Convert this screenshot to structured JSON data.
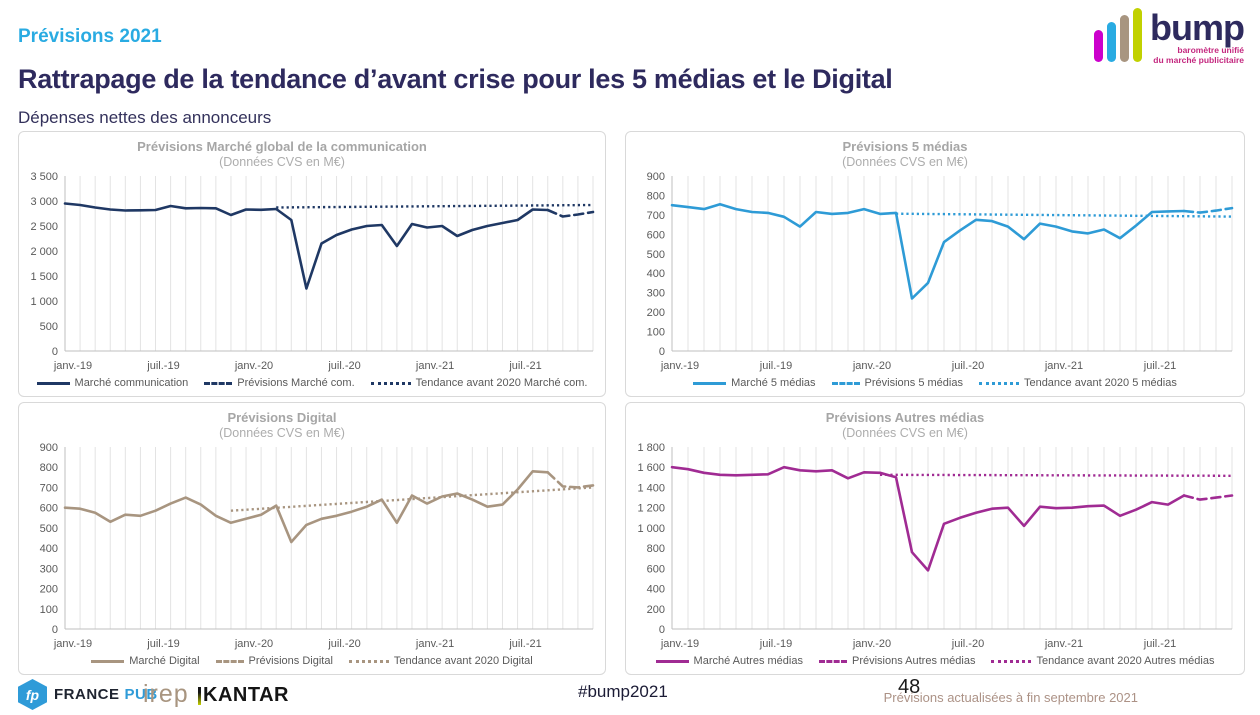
{
  "header": {
    "kicker": "Prévisions 2021",
    "title": "Rattrapage de la tendance d’avant crise pour les 5 médias et le Digital",
    "subtitle": "Dépenses nettes des annonceurs"
  },
  "logo": {
    "name": "bump",
    "tagline_line1": "baromètre unifié",
    "tagline_line2": "du marché publicitaire",
    "bar_colors": [
      "#CC00CC",
      "#29ABE2",
      "#A89580",
      "#C1D100"
    ],
    "text_color": "#2E2A5E",
    "tagline_color": "#C4287F"
  },
  "footer": {
    "france_pub_icon": "fp",
    "france_pub_part1": "FRANCE",
    "france_pub_part2": "PUB",
    "irep": "irep",
    "kantar": "KANTAR",
    "hashtag": "#bump2021",
    "page_number": "48",
    "note": "Prévisions actualisées à fin septembre 2021"
  },
  "chart_data": [
    {
      "type": "line",
      "title": "Prévisions Marché global de la communication",
      "subtitle": "(Données CVS en M€)",
      "color": "#1F3864",
      "ylim": [
        0,
        3500
      ],
      "ytick_step": 500,
      "x_months": 36,
      "x_tick_positions": [
        0,
        6,
        12,
        18,
        24,
        30
      ],
      "x_tick_labels": [
        "janv.-19",
        "juil.-19",
        "janv.-20",
        "juil.-20",
        "janv.-21",
        "juil.-21"
      ],
      "series": [
        {
          "name": "Marché communication",
          "style": "solid",
          "start": 0,
          "values": [
            2950,
            2920,
            2870,
            2830,
            2810,
            2815,
            2820,
            2900,
            2855,
            2860,
            2855,
            2720,
            2830,
            2825,
            2840,
            2620,
            1250,
            2150,
            2320,
            2430,
            2500,
            2520,
            2100,
            2540,
            2470,
            2500,
            2300,
            2420,
            2500,
            2560,
            2620,
            2830,
            2820
          ]
        },
        {
          "name": "Prévisions Marché com.",
          "style": "dashed",
          "start": 32,
          "values": [
            2820,
            2690,
            2730,
            2780
          ]
        },
        {
          "name": "Tendance avant 2020 Marché com.",
          "style": "dotted",
          "start": 14,
          "end": 35,
          "values": [
            2870,
            2920
          ]
        }
      ]
    },
    {
      "type": "line",
      "title": "Prévisions 5 médias",
      "subtitle": "(Données CVS en M€)",
      "color": "#2E9BD6",
      "ylim": [
        0,
        900
      ],
      "ytick_step": 100,
      "x_months": 36,
      "x_tick_positions": [
        0,
        6,
        12,
        18,
        24,
        30
      ],
      "x_tick_labels": [
        "janv.-19",
        "juil.-19",
        "janv.-20",
        "juil.-20",
        "janv.-21",
        "juil.-21"
      ],
      "series": [
        {
          "name": "Marché 5 médias",
          "style": "solid",
          "start": 0,
          "values": [
            750,
            740,
            730,
            755,
            730,
            715,
            710,
            690,
            640,
            715,
            705,
            710,
            730,
            705,
            710,
            270,
            350,
            560,
            620,
            675,
            668,
            640,
            575,
            655,
            640,
            615,
            605,
            625,
            580,
            645,
            715,
            718,
            720
          ]
        },
        {
          "name": "Prévisions 5 médias",
          "style": "dashed",
          "start": 32,
          "values": [
            720,
            712,
            722,
            735
          ]
        },
        {
          "name": "Tendance avant 2020 5 médias",
          "style": "dotted",
          "start": 14,
          "end": 35,
          "values": [
            706,
            691
          ]
        }
      ]
    },
    {
      "type": "line",
      "title": "Prévisions Digital",
      "subtitle": "(Données CVS en M€)",
      "color": "#A89580",
      "ylim": [
        0,
        900
      ],
      "ytick_step": 100,
      "x_months": 36,
      "x_tick_positions": [
        0,
        6,
        12,
        18,
        24,
        30
      ],
      "x_tick_labels": [
        "janv.-19",
        "juil.-19",
        "janv.-20",
        "juil.-20",
        "janv.-21",
        "juil.-21"
      ],
      "series": [
        {
          "name": "Marché Digital",
          "style": "solid",
          "start": 0,
          "values": [
            600,
            595,
            575,
            530,
            565,
            560,
            585,
            620,
            650,
            615,
            560,
            525,
            545,
            565,
            610,
            430,
            515,
            545,
            560,
            580,
            605,
            640,
            525,
            660,
            620,
            655,
            670,
            640,
            605,
            615,
            690,
            780,
            775
          ]
        },
        {
          "name": "Prévisions Digital",
          "style": "dashed",
          "start": 32,
          "values": [
            775,
            705,
            700,
            710
          ]
        },
        {
          "name": "Tendance avant 2020 Digital",
          "style": "dotted",
          "start": 11,
          "end": 35,
          "values": [
            585,
            700
          ]
        }
      ]
    },
    {
      "type": "line",
      "title": "Prévisions Autres médias",
      "subtitle": "(Données CVS en M€)",
      "color": "#A02B93",
      "ylim": [
        0,
        1800
      ],
      "ytick_step": 200,
      "x_months": 36,
      "x_tick_positions": [
        0,
        6,
        12,
        18,
        24,
        30
      ],
      "x_tick_labels": [
        "janv.-19",
        "juil.-19",
        "janv.-20",
        "juil.-20",
        "janv.-21",
        "juil.-21"
      ],
      "series": [
        {
          "name": "Marché Autres médias",
          "style": "solid",
          "start": 0,
          "values": [
            1600,
            1580,
            1545,
            1525,
            1520,
            1525,
            1530,
            1600,
            1570,
            1560,
            1570,
            1490,
            1550,
            1545,
            1500,
            760,
            580,
            1040,
            1100,
            1150,
            1190,
            1200,
            1020,
            1210,
            1195,
            1200,
            1215,
            1220,
            1120,
            1180,
            1255,
            1230,
            1320
          ]
        },
        {
          "name": "Prévisions Autres médias",
          "style": "dashed",
          "start": 32,
          "values": [
            1320,
            1280,
            1300,
            1320
          ]
        },
        {
          "name": "Tendance avant 2020 Autres médias",
          "style": "dotted",
          "start": 13,
          "end": 35,
          "values": [
            1525,
            1515
          ]
        }
      ]
    }
  ]
}
